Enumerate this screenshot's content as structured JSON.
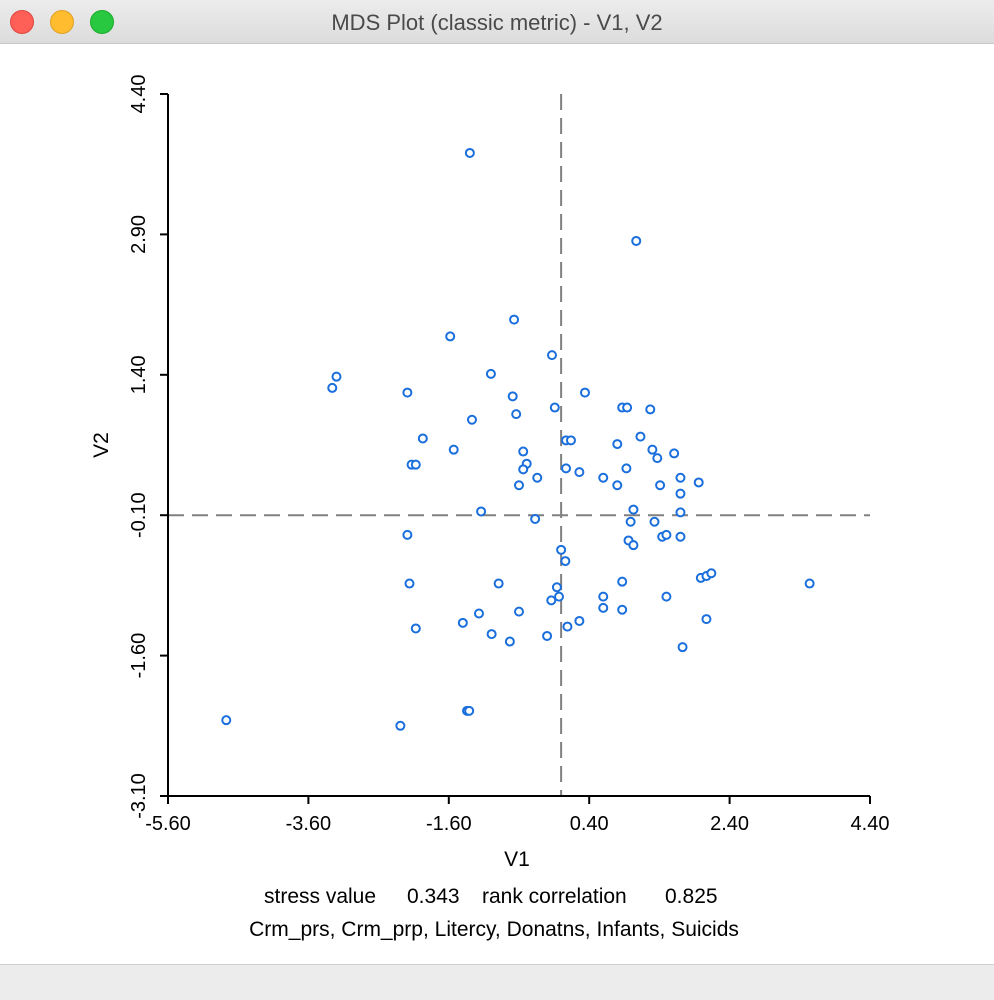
{
  "window": {
    "title": "MDS Plot (classic metric) - V1, V2"
  },
  "chart_data": {
    "type": "scatter",
    "xlabel": "V1",
    "ylabel": "V2",
    "xlim": [
      -5.6,
      4.4
    ],
    "ylim": [
      -3.1,
      4.4
    ],
    "xticks": [
      "-5.60",
      "-3.60",
      "-1.60",
      "0.40",
      "2.40",
      "4.40"
    ],
    "yticks": [
      "-3.10",
      "-1.60",
      "-0.10",
      "1.40",
      "2.90",
      "4.40"
    ],
    "reference_lines": {
      "x": 0.0,
      "y": -0.1,
      "style": "dashed"
    },
    "marker_color": "#1a6fdc",
    "points": [
      {
        "x": -1.3,
        "y": 3.77
      },
      {
        "x": 1.07,
        "y": 2.83
      },
      {
        "x": -0.67,
        "y": 1.99
      },
      {
        "x": -1.58,
        "y": 1.81
      },
      {
        "x": -0.13,
        "y": 1.61
      },
      {
        "x": -3.2,
        "y": 1.38
      },
      {
        "x": -3.26,
        "y": 1.26
      },
      {
        "x": -1.0,
        "y": 1.41
      },
      {
        "x": -2.19,
        "y": 1.21
      },
      {
        "x": 0.34,
        "y": 1.21
      },
      {
        "x": -0.69,
        "y": 1.17
      },
      {
        "x": -0.09,
        "y": 1.05
      },
      {
        "x": -0.64,
        "y": 0.98
      },
      {
        "x": -1.27,
        "y": 0.92
      },
      {
        "x": 0.87,
        "y": 1.05
      },
      {
        "x": 0.94,
        "y": 1.05
      },
      {
        "x": 1.27,
        "y": 1.03
      },
      {
        "x": -1.97,
        "y": 0.72
      },
      {
        "x": -1.53,
        "y": 0.6
      },
      {
        "x": 0.07,
        "y": 0.7
      },
      {
        "x": 0.14,
        "y": 0.7
      },
      {
        "x": 0.8,
        "y": 0.66
      },
      {
        "x": 1.13,
        "y": 0.74
      },
      {
        "x": 1.3,
        "y": 0.6
      },
      {
        "x": 1.37,
        "y": 0.51
      },
      {
        "x": 1.61,
        "y": 0.56
      },
      {
        "x": -2.13,
        "y": 0.44
      },
      {
        "x": -2.07,
        "y": 0.44
      },
      {
        "x": -0.54,
        "y": 0.58
      },
      {
        "x": -0.49,
        "y": 0.45
      },
      {
        "x": -0.54,
        "y": 0.39
      },
      {
        "x": 0.07,
        "y": 0.4
      },
      {
        "x": 0.26,
        "y": 0.36
      },
      {
        "x": 0.93,
        "y": 0.4
      },
      {
        "x": 0.6,
        "y": 0.3
      },
      {
        "x": -0.34,
        "y": 0.3
      },
      {
        "x": -0.6,
        "y": 0.22
      },
      {
        "x": 0.8,
        "y": 0.22
      },
      {
        "x": 1.41,
        "y": 0.22
      },
      {
        "x": 1.7,
        "y": 0.3
      },
      {
        "x": 1.96,
        "y": 0.25
      },
      {
        "x": 1.7,
        "y": 0.13
      },
      {
        "x": -1.14,
        "y": -0.06
      },
      {
        "x": -0.37,
        "y": -0.14
      },
      {
        "x": 1.03,
        "y": -0.04
      },
      {
        "x": 1.7,
        "y": -0.07
      },
      {
        "x": 1.33,
        "y": -0.17
      },
      {
        "x": 0.99,
        "y": -0.17
      },
      {
        "x": -2.19,
        "y": -0.31
      },
      {
        "x": 0.96,
        "y": -0.37
      },
      {
        "x": 1.03,
        "y": -0.42
      },
      {
        "x": 1.44,
        "y": -0.33
      },
      {
        "x": 1.5,
        "y": -0.31
      },
      {
        "x": 1.7,
        "y": -0.33
      },
      {
        "x": 0.0,
        "y": -0.47
      },
      {
        "x": 0.06,
        "y": -0.59
      },
      {
        "x": -2.16,
        "y": -0.83
      },
      {
        "x": -0.89,
        "y": -0.83
      },
      {
        "x": 1.99,
        "y": -0.77
      },
      {
        "x": 2.07,
        "y": -0.75
      },
      {
        "x": 2.14,
        "y": -0.72
      },
      {
        "x": 3.54,
        "y": -0.83
      },
      {
        "x": 0.87,
        "y": -0.81
      },
      {
        "x": -0.06,
        "y": -0.87
      },
      {
        "x": -0.03,
        "y": -0.97
      },
      {
        "x": 0.6,
        "y": -0.97
      },
      {
        "x": -0.14,
        "y": -1.01
      },
      {
        "x": 1.5,
        "y": -0.97
      },
      {
        "x": 0.6,
        "y": -1.09
      },
      {
        "x": 0.87,
        "y": -1.11
      },
      {
        "x": -1.17,
        "y": -1.15
      },
      {
        "x": -0.6,
        "y": -1.13
      },
      {
        "x": 2.07,
        "y": -1.21
      },
      {
        "x": -1.4,
        "y": -1.25
      },
      {
        "x": -2.07,
        "y": -1.31
      },
      {
        "x": 0.26,
        "y": -1.23
      },
      {
        "x": 0.09,
        "y": -1.29
      },
      {
        "x": -0.99,
        "y": -1.37
      },
      {
        "x": -0.73,
        "y": -1.45
      },
      {
        "x": -0.2,
        "y": -1.39
      },
      {
        "x": 1.73,
        "y": -1.51
      },
      {
        "x": -1.34,
        "y": -2.19
      },
      {
        "x": -1.31,
        "y": -2.19
      },
      {
        "x": -4.77,
        "y": -2.29
      },
      {
        "x": -2.29,
        "y": -2.35
      }
    ],
    "footer": {
      "stress_label": "stress value",
      "stress_value": "0.343",
      "rank_label": "rank correlation",
      "rank_value": "0.825",
      "variables": "Crm_prs, Crm_prp, Litercy, Donatns, Infants, Suicids"
    }
  }
}
